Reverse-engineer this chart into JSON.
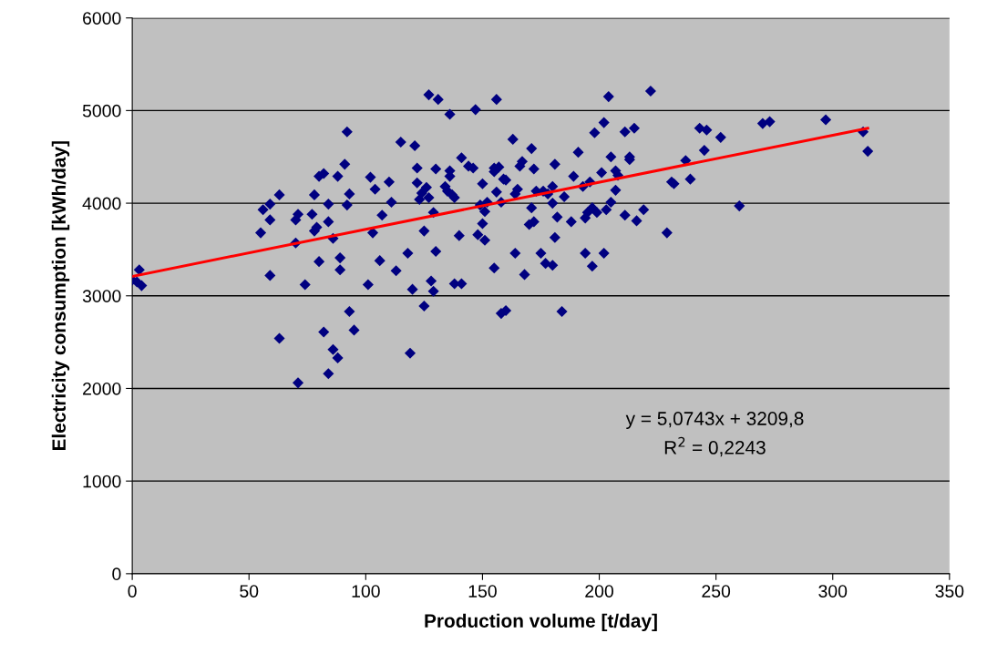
{
  "chart_data": {
    "type": "scatter",
    "xlabel": "Production volume [t/day]",
    "ylabel": "Electricity consumption [kWh/day]",
    "xlim": [
      0,
      350
    ],
    "xticks": [
      0,
      50,
      100,
      150,
      200,
      250,
      300,
      350
    ],
    "ylim": [
      0,
      6000
    ],
    "yticks": [
      0,
      1000,
      2000,
      3000,
      4000,
      5000,
      6000
    ],
    "grid": "y",
    "legend": false,
    "marker": "diamond",
    "series": [
      {
        "color": "#000080",
        "x": [
          0,
          3,
          4,
          2,
          56,
          55,
          59,
          59,
          59,
          63,
          63,
          71,
          70,
          70,
          71,
          74,
          77,
          78,
          78,
          79,
          80,
          80,
          82,
          82,
          84,
          84,
          84,
          86,
          86,
          88,
          88,
          89,
          89,
          91,
          92,
          92,
          93,
          93,
          95,
          101,
          102,
          103,
          104,
          106,
          107,
          110,
          111,
          113,
          115,
          118,
          119,
          120,
          121,
          122,
          122,
          123,
          124,
          125,
          125,
          126,
          127,
          127,
          128,
          129,
          129,
          130,
          130,
          131,
          134,
          135,
          136,
          136,
          136,
          137,
          138,
          138,
          140,
          141,
          141,
          144,
          146,
          147,
          148,
          149,
          150,
          150,
          151,
          151,
          152,
          155,
          155,
          155,
          156,
          156,
          157,
          158,
          158,
          159,
          160,
          160,
          163,
          164,
          164,
          165,
          166,
          167,
          168,
          170,
          171,
          171,
          172,
          172,
          173,
          175,
          176,
          177,
          178,
          180,
          180,
          180,
          181,
          181,
          182,
          184,
          185,
          188,
          189,
          191,
          193,
          194,
          194,
          195,
          196,
          197,
          197,
          198,
          199,
          201,
          202,
          202,
          203,
          204,
          205,
          205,
          207,
          207,
          208,
          211,
          211,
          213,
          213,
          215,
          216,
          219,
          222,
          229,
          231,
          232,
          237,
          239,
          243,
          245,
          246,
          252,
          260,
          270,
          273,
          297,
          313,
          315
        ],
        "values": [
          3170,
          3280,
          3110,
          3150,
          3930,
          3680,
          3990,
          3820,
          3220,
          4090,
          2540,
          3880,
          3570,
          3820,
          2060,
          3120,
          3880,
          4090,
          3700,
          3740,
          3370,
          4290,
          4320,
          2610,
          2160,
          3990,
          3800,
          2420,
          3620,
          2330,
          4290,
          3410,
          3280,
          4420,
          4770,
          3980,
          4100,
          2830,
          2630,
          3120,
          4280,
          3680,
          4150,
          3380,
          3870,
          4230,
          4010,
          3270,
          4660,
          3460,
          2380,
          3070,
          4620,
          4380,
          4220,
          4040,
          4110,
          2890,
          3700,
          4170,
          4060,
          5170,
          3160,
          3050,
          3900,
          4370,
          3480,
          5120,
          4180,
          4130,
          4350,
          4290,
          4960,
          4090,
          4060,
          3130,
          3650,
          4490,
          3130,
          4400,
          4380,
          5010,
          3660,
          3980,
          4210,
          3780,
          3910,
          3600,
          4010,
          4380,
          3300,
          4340,
          5120,
          4120,
          4390,
          4010,
          2810,
          4260,
          2840,
          4250,
          4690,
          4100,
          3460,
          4150,
          4400,
          4450,
          3230,
          3770,
          4590,
          3950,
          4370,
          3800,
          4130,
          3460,
          4130,
          3350,
          4100,
          4180,
          4000,
          3330,
          3630,
          4420,
          3850,
          2830,
          4070,
          3800,
          4290,
          4550,
          4180,
          3840,
          3460,
          3900,
          4230,
          3950,
          3320,
          4760,
          3900,
          4330,
          4870,
          3460,
          3930,
          5150,
          4010,
          4500,
          4350,
          4140,
          4300,
          3870,
          4770,
          4500,
          4470,
          4810,
          3810,
          3930,
          5210,
          3680,
          4230,
          4210,
          4460,
          4260,
          4810,
          4570,
          4790,
          4710,
          3970,
          4860,
          4880,
          4900,
          4770,
          4560
        ]
      },
      {
        "type": "line",
        "color": "#ff0000",
        "marker": "none",
        "line_style": "solid",
        "x": [
          0,
          315
        ],
        "values": [
          3210,
          4810
        ]
      }
    ],
    "annotations": [
      "y = 5,0743x + 3209,8\nR$^{2}$ = 0,2243"
    ]
  }
}
